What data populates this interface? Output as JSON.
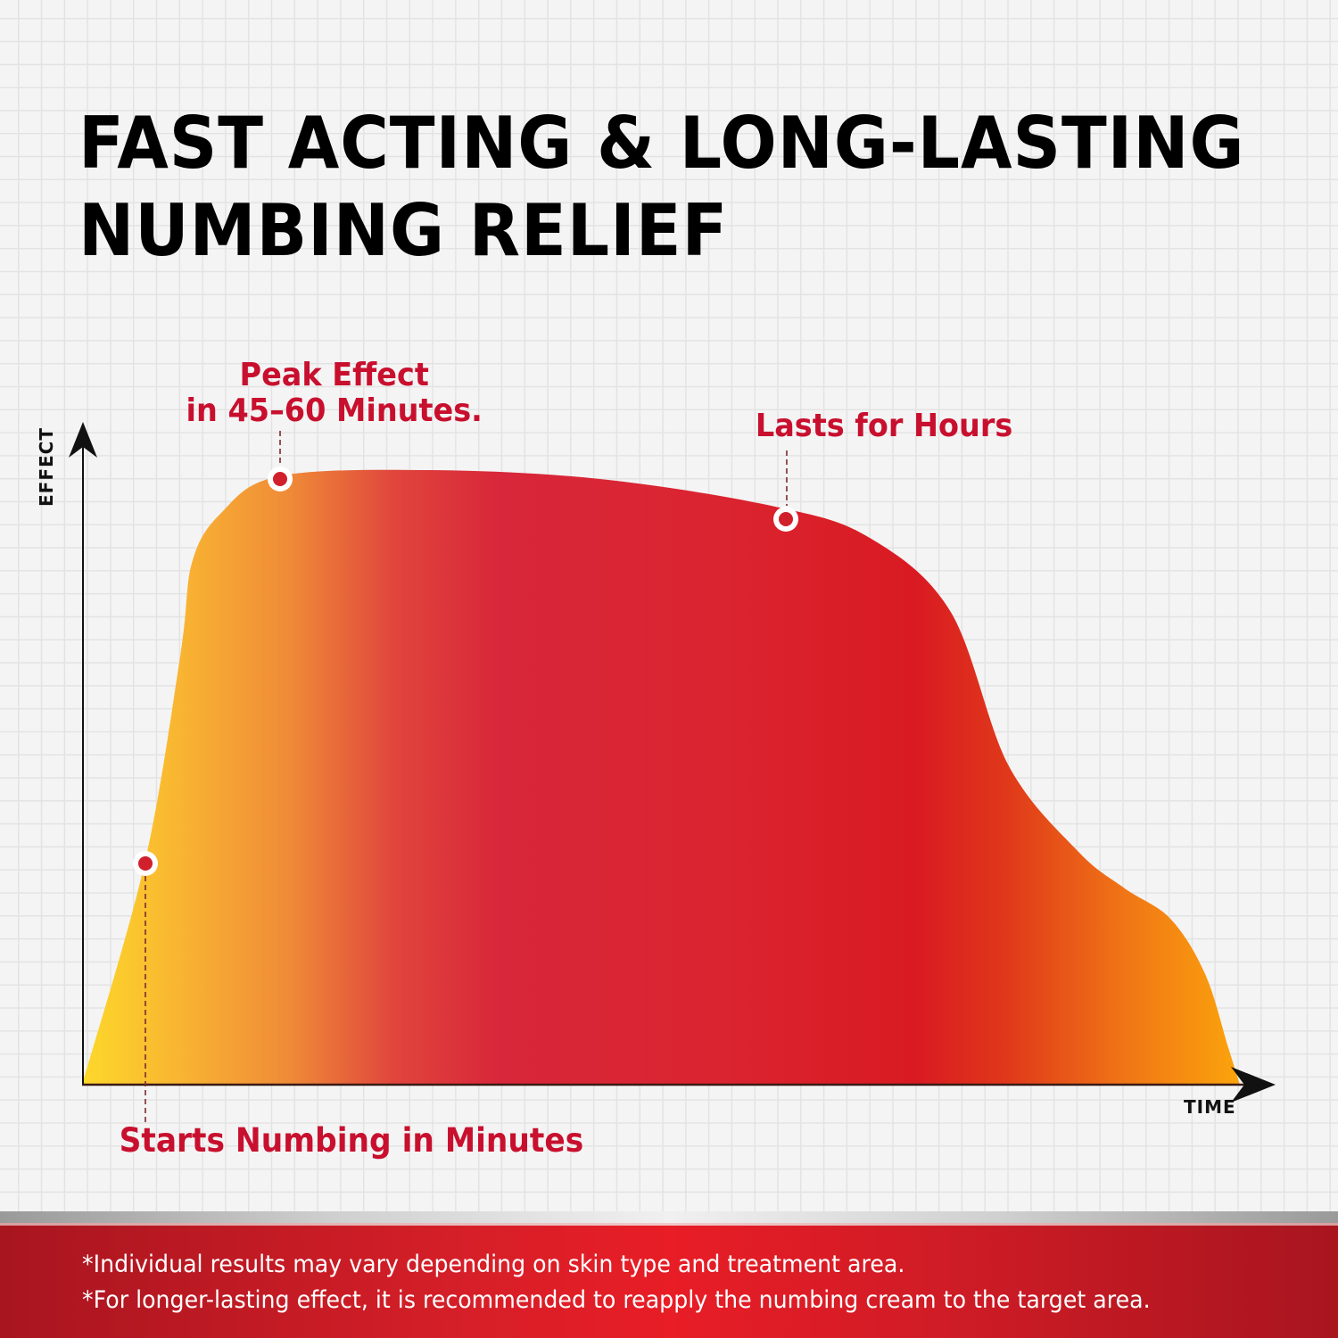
{
  "title": {
    "line1": "FAST ACTING & LONG-LASTING",
    "line2": "NUMBING RELIEF"
  },
  "colors": {
    "background": "#f4f4f4",
    "grid": "#e3e3e3",
    "callout_text": "#c8102e",
    "marker_fill": "#d0202c",
    "gradient_stops": [
      "#fdd82a",
      "#f7a030",
      "#d8273a",
      "#d91a22",
      "#f06a14",
      "#fba40c"
    ]
  },
  "callouts": {
    "peak": {
      "line1": "Peak Effect",
      "line2": "in 45–60 Minutes."
    },
    "lasts": {
      "line1": "Lasts for Hours"
    },
    "starts": {
      "line1": "Starts Numbing in Minutes"
    }
  },
  "axes": {
    "x_label": "TIME",
    "y_label": "EFFECT"
  },
  "footer": {
    "line1": "*Individual results may vary depending on skin type and treatment area.",
    "line2": "*For longer-lasting effect, it is recommended to reapply the numbing cream to the target area."
  },
  "chart_data": {
    "type": "area",
    "title": "FAST ACTING & LONG-LASTING NUMBING RELIEF",
    "xlabel": "TIME",
    "ylabel": "EFFECT",
    "grid": true,
    "legend": "none",
    "xlim": [
      0,
      100
    ],
    "ylim": [
      0,
      100
    ],
    "note": "Illustrative effect-over-time curve; no numeric tick labels shown. Values are relative estimates (0-100).",
    "x": [
      0,
      5.4,
      8.5,
      9.5,
      12,
      17,
      30,
      45,
      60,
      68,
      75,
      80,
      86,
      90,
      94,
      97,
      99,
      100
    ],
    "values": [
      0,
      36,
      70,
      85,
      93,
      99,
      100,
      98.5,
      94,
      89,
      77,
      52,
      38,
      32,
      27,
      18,
      6,
      0
    ],
    "annotations": [
      {
        "label": "Starts Numbing in Minutes",
        "x": 5.4,
        "y": 36
      },
      {
        "label": "Peak Effect in 45–60 Minutes.",
        "x": 17,
        "y": 99
      },
      {
        "label": "Lasts for Hours",
        "x": 60,
        "y": 94
      }
    ]
  }
}
